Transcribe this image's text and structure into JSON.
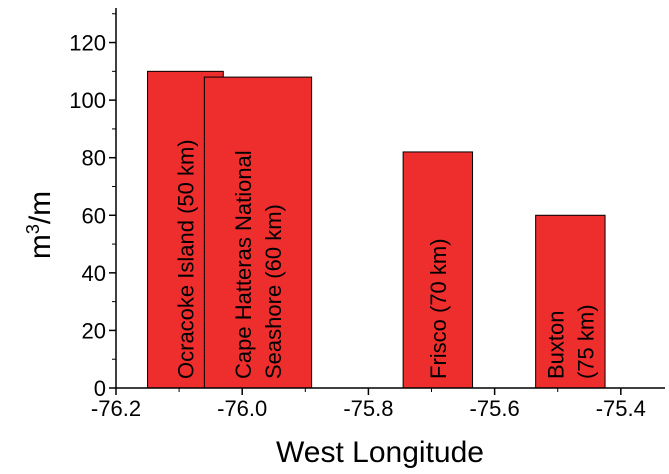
{
  "chart_data": {
    "type": "bar",
    "xlabel": "West Longitude",
    "ylabel_base": "m",
    "ylabel_exponent": "3",
    "ylabel_suffix": "/m",
    "xlim": [
      -76.2,
      -75.33
    ],
    "ylim": [
      0,
      132
    ],
    "xticks": [
      -76.2,
      -76.0,
      -75.8,
      -75.6,
      -75.4
    ],
    "xtick_labels": [
      "-76.2",
      "-76.0",
      "-75.8",
      "-75.6",
      "-75.4"
    ],
    "yticks": [
      0,
      20,
      40,
      60,
      80,
      100,
      120
    ],
    "ytick_labels": [
      "0",
      "20",
      "40",
      "60",
      "80",
      "100",
      "120"
    ],
    "bar_color": "#ee2d2d",
    "bars": [
      {
        "x0": -76.15,
        "x1": -76.03,
        "value": 110,
        "label_lines": [
          "Ocracoke Island (50 km)"
        ]
      },
      {
        "x0": -76.06,
        "x1": -75.89,
        "value": 108,
        "label_lines": [
          "Cape Hatteras National",
          "Seashore (60 km)"
        ]
      },
      {
        "x0": -75.745,
        "x1": -75.635,
        "value": 82,
        "label_lines": [
          "Frisco (70 km)"
        ]
      },
      {
        "x0": -75.535,
        "x1": -75.425,
        "value": 60,
        "label_lines": [
          "Buxton",
          "(75 km)"
        ]
      }
    ]
  }
}
